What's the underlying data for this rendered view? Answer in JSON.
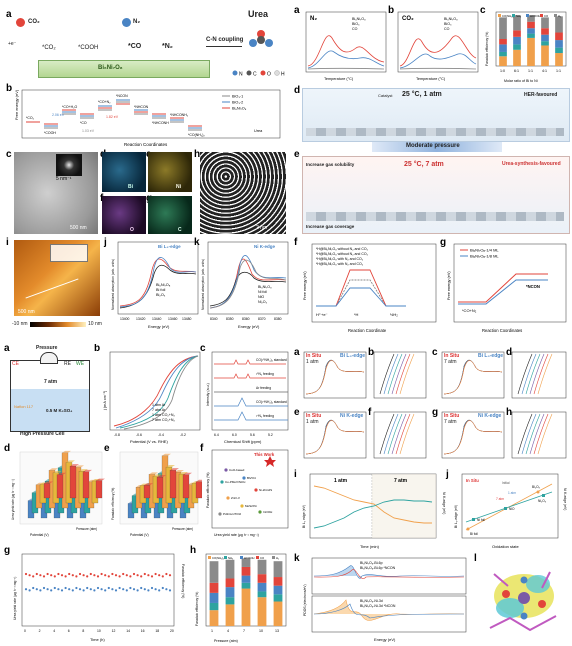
{
  "top_left": {
    "a": {
      "letter": "a",
      "co2": "CO₂",
      "n2": "N₂",
      "urea": "Urea",
      "coupling": "C-N coupling",
      "catalyst": "Bi₆Ni₇O₈",
      "eh": "+e⁻",
      "steps": [
        "*CO₂",
        "*COOH",
        "*CO",
        "*N₂"
      ],
      "legend": [
        "N",
        "C",
        "O",
        "H"
      ]
    },
    "b": {
      "letter": "b",
      "ylabel": "Free energy (eV)",
      "xlabel": "Reaction Coordinates",
      "legend": [
        "BiO₃-1",
        "BiO₃-2",
        "Bi₆Ni₇O₈",
        "Urea"
      ],
      "states": [
        "*CO₂",
        "*COOH",
        "*CO+H₂O",
        "*CO",
        "*CO+N₂",
        "*NCON",
        "*NHCON",
        "*NHCONH",
        "*NHCONH₂",
        "*CO(NH₂)₂"
      ],
      "values": [
        "2.06 eV",
        "1.82 eV",
        "1.03 eV"
      ]
    },
    "c": {
      "letter": "c",
      "scale": "500 nm",
      "inset": "5 nm⁻¹"
    },
    "d": {
      "letter": "d",
      "element": "Bi"
    },
    "e": {
      "letter": "e",
      "element": "Ni"
    },
    "f": {
      "letter": "f",
      "element": "O"
    },
    "g": {
      "letter": "g",
      "element": "C"
    },
    "h": {
      "letter": "h",
      "scale": "2 nm"
    },
    "i": {
      "letter": "i",
      "scale": "500 nm",
      "min": "-10 nm",
      "max": "10 nm"
    },
    "j": {
      "letter": "j",
      "edge": "Bi L₃-edge",
      "ylabel": "Normalized absorption (arb. units)",
      "xlabel": "Energy (eV)",
      "legend": [
        "Bi₆Ni₇O₈",
        "Bi foil",
        "Bi₂O₃"
      ],
      "ticks": [
        "13400",
        "13420",
        "13440",
        "13460",
        "13480"
      ]
    },
    "k": {
      "letter": "k",
      "edge": "Ni K-edge",
      "ylabel": "Normalized absorption (arb. units)",
      "xlabel": "Energy (eV)",
      "legend": [
        "Bi₆Ni₇O₈",
        "Ni foil",
        "NiO",
        "Ni₂O₃"
      ],
      "ticks": [
        "8340",
        "8350",
        "8360",
        "8370",
        "8380"
      ]
    }
  },
  "top_right": {
    "a": {
      "letter": "a",
      "gas": "N₂",
      "legend": [
        "Bi₆Ni₇O₈",
        "BiO₃",
        "CO"
      ],
      "xlabel": "Temperature (°C)"
    },
    "b": {
      "letter": "b",
      "gas": "CO₂",
      "legend": [
        "Bi₆Ni₇O₈",
        "BiO₃",
        "CO"
      ],
      "xlabel": "Temperature (°C)"
    },
    "c": {
      "letter": "c",
      "ylabel": "Faradaic efficiency (%)",
      "xlabel": "Molar ratio of Bi to Ni",
      "legend": [
        "CO(NH₂)₂",
        "NH₃",
        "HCOOH",
        "CO",
        "H₂"
      ],
      "categories": [
        "1:0",
        "6:1",
        "1:1",
        "4:1",
        "1:1"
      ]
    },
    "d": {
      "letter": "d",
      "catalyst": "Catalyst",
      "condition": "25 °C, 1 atm",
      "regime": "HER-favoured"
    },
    "e": {
      "letter": "e",
      "banner": "Moderate pressure",
      "condition": "25 °C, 7 atm",
      "regime": "Urea-synthesis-favoured",
      "note1": "Increase gas solubility",
      "note2": "Increase gas coverage"
    },
    "f": {
      "letter": "f",
      "ylabel": "Free energy (eV)",
      "xlabel": "Reaction Coordinate",
      "legend": [
        "*H@Bi₆Ni₇O₈ without N₂ and CO₂",
        "*H@Bi₆Ni₇O₈ without N₂ and CO₂",
        "*H@Bi₆Ni₇O₈ with N₂ and CO₂",
        "*H@Bi₆Ni₇O₈ with N₂ and CO₂"
      ],
      "states": [
        "H⁺+e⁻",
        "*H",
        "½H₂"
      ]
    },
    "g": {
      "letter": "g",
      "ylabel": "Free energy (eV)",
      "xlabel": "Reaction Coordinates",
      "legend": [
        "Bi₆Ni₇O₈-1/4 ML",
        "Bi₆Ni₇O₈-1/8 ML"
      ],
      "states": [
        "*CO+N₂",
        "*NCON"
      ]
    }
  },
  "bottom_left": {
    "a": {
      "letter": "a",
      "title": "Pressure",
      "ce": "CE",
      "re": "RE",
      "we": "WE",
      "height": "7 atm",
      "membrane": "Nafion 117",
      "electrolyte": "0.5 M K₂SO₄",
      "cell": "High Pressure Cell"
    },
    "b": {
      "letter": "b",
      "ylabel": "j (mA cm⁻²)",
      "xlabel": "Potential (V vs. RHE)",
      "legend": [
        "1 atm Ar",
        "7 atm Ar",
        "1 atm CO₂+N₂",
        "7 atm CO₂+N₂"
      ],
      "ticks": [
        "-0.8",
        "-0.6",
        "-0.4",
        "-0.2"
      ]
    },
    "c": {
      "letter": "c",
      "ylabel": "Intensity (a.u.)",
      "xlabel": "Chemical Shift (ppm)",
      "traces": [
        "CO(¹⁵NH₂)₂ standard",
        "¹⁵N₂ feeding",
        "Ar feeding",
        "CO(¹⁴NH₂)₂ standard",
        "¹⁴N₂ feeding"
      ],
      "ticks": [
        "6.4",
        "6.0",
        "5.6",
        "5.2"
      ]
    },
    "d": {
      "letter": "d",
      "ylabel": "Urea yield rate (μg h⁻¹ mg⁻¹)",
      "xlabel": "Potential (V)",
      "zlabel": "Pressure (atm)"
    },
    "e": {
      "letter": "e",
      "ylabel": "Faradaic efficiency (%)",
      "xlabel": "Potential (V)",
      "zlabel": "Pressure (atm)"
    },
    "f": {
      "letter": "f",
      "ylabel": "Faradaic efficiency (%)",
      "xlabel": "Urea yield rate (μg h⁻¹ mg⁻¹)",
      "this_work": "This Work",
      "refs": [
        "CuO-based",
        "Co-PMoV/NiOx",
        "BiVO4",
        "Ni-ZnCdS",
        "ZnO-V",
        "MoS2/Ni",
        "Pd1Cu1/TiO2",
        "InOOH"
      ]
    },
    "g": {
      "letter": "g",
      "ylabel": "Urea yield rate (μg h⁻¹ mg⁻¹)",
      "ylabel2": "Faradaic efficiency (%)",
      "xlabel": "Time (h)",
      "ticks": [
        "0",
        "2",
        "4",
        "6",
        "8",
        "10",
        "12",
        "14",
        "16",
        "18",
        "20"
      ]
    },
    "h": {
      "letter": "h",
      "ylabel": "Faradaic efficiency (%)",
      "xlabel": "Pressure (atm)",
      "legend": [
        "CO(NH₂)₂",
        "NH₃",
        "HCOOH",
        "CO",
        "H₂"
      ],
      "categories": [
        "1",
        "4",
        "7",
        "10",
        "13"
      ]
    }
  },
  "bottom_right": {
    "a": {
      "letter": "a",
      "tag": "In Situ",
      "sub": "1 atm",
      "edge": "Bi L₃-edge"
    },
    "b": {
      "letter": "b"
    },
    "c": {
      "letter": "c",
      "tag": "In Situ",
      "sub": "7 atm",
      "edge": "Bi L₃-edge"
    },
    "d": {
      "letter": "d"
    },
    "e": {
      "letter": "e",
      "tag": "In Situ",
      "sub": "1 atm",
      "edge": "Ni K-edge"
    },
    "f": {
      "letter": "f"
    },
    "g": {
      "letter": "g",
      "tag": "In Situ",
      "sub": "7 atm",
      "edge": "Ni K-edge"
    },
    "h": {
      "letter": "h"
    },
    "i": {
      "letter": "i",
      "ylabel": "Bi L₃ edge (eV)",
      "ylabel2": "Ni K-edge (eV)",
      "xlabel": "Time (min)",
      "seg1": "1 atm",
      "seg2": "7 atm"
    },
    "j": {
      "letter": "j",
      "tag": "In Situ",
      "ylabel": "Bi L₃-edge (eV)",
      "ylabel2": "Ni K-edge (eV)",
      "xlabel": "Oxidation state",
      "labels": [
        "Bi foil",
        "Bi₂O₃",
        "Ni foil",
        "NiO",
        "Ni₂O₃",
        "Initial",
        "1 atm",
        "7 atm"
      ]
    },
    "k": {
      "letter": "k",
      "xlabel": "Energy (eV)",
      "ylabel": "PDOS (electrons/eV)",
      "legend_top": [
        "Bi₆Ni₇O₈-Bi-6p",
        "Bi₆Ni₇O₈-Bi-6p *NCON"
      ],
      "legend_bot": [
        "Bi₆Ni₇O₈-Ni-3d",
        "Bi₆Ni₇O₈-Ni-3d *NCON"
      ]
    },
    "l": {
      "letter": "l"
    }
  },
  "colors": {
    "red": "#e2453b",
    "blue": "#4a84c4",
    "teal": "#2ea3a0",
    "orange": "#f0a04b",
    "grey": "#8a8a8a",
    "purple": "#7b5aa6",
    "gold": "#e6b73b"
  }
}
